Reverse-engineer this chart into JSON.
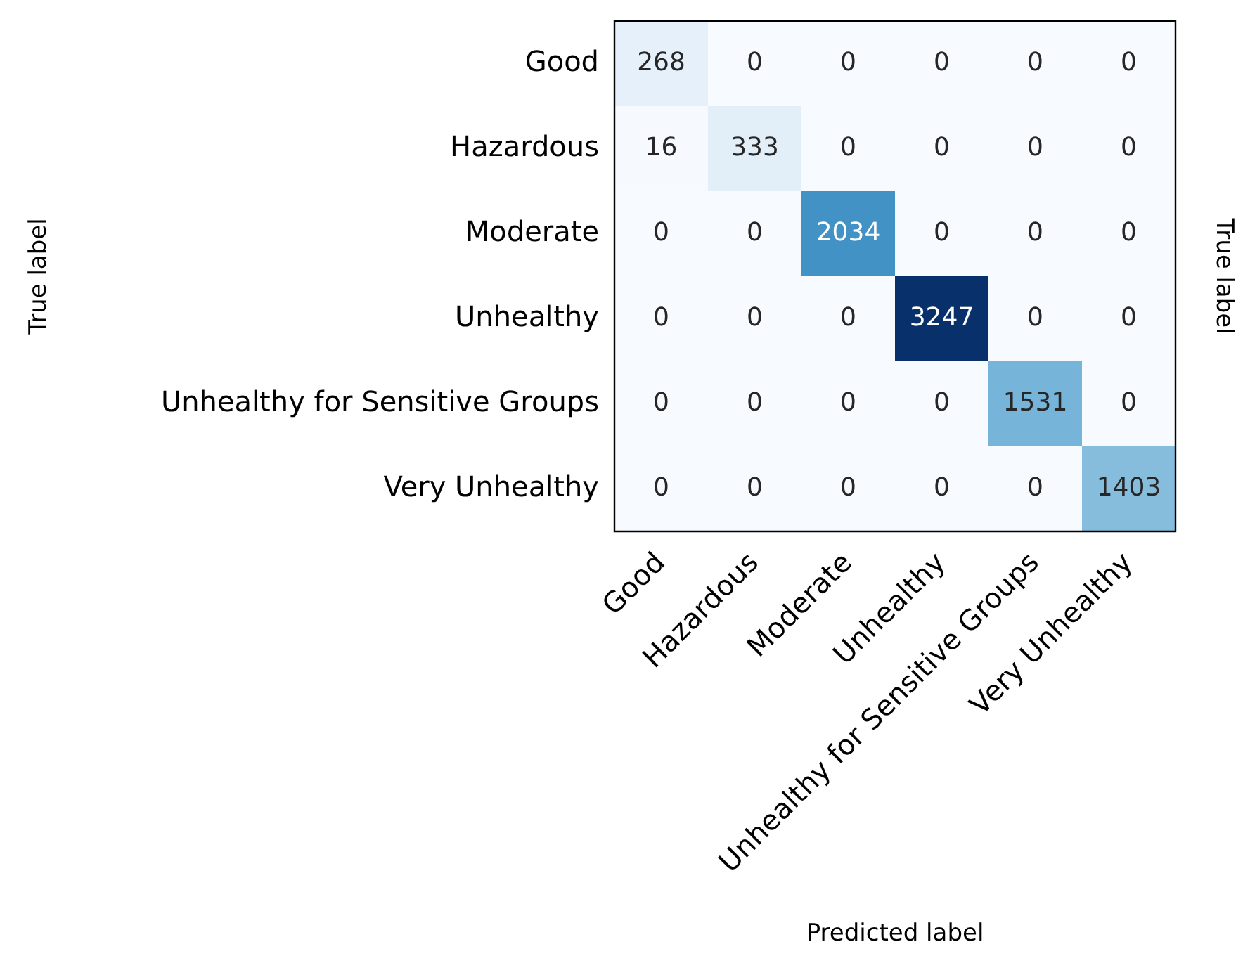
{
  "chart_data": {
    "type": "heatmap",
    "xlabel": "Predicted label",
    "ylabel": "True label",
    "y2label": "True label",
    "categories": [
      "Good",
      "Hazardous",
      "Moderate",
      "Unhealthy",
      "Unhealthy for Sensitive Groups",
      "Very Unhealthy"
    ],
    "y_categories": [
      "Good",
      "Hazardous",
      "Moderate",
      "Unhealthy",
      "Unhealthy for Sensitive Groups",
      "Very Unhealthy"
    ],
    "cells": [
      [
        268,
        0,
        0,
        0,
        0,
        0
      ],
      [
        16,
        333,
        0,
        0,
        0,
        0
      ],
      [
        0,
        0,
        2034,
        0,
        0,
        0
      ],
      [
        0,
        0,
        0,
        3247,
        0,
        0
      ],
      [
        0,
        0,
        0,
        0,
        1531,
        0
      ],
      [
        0,
        0,
        0,
        0,
        0,
        1403
      ]
    ],
    "data_labels": true
  }
}
